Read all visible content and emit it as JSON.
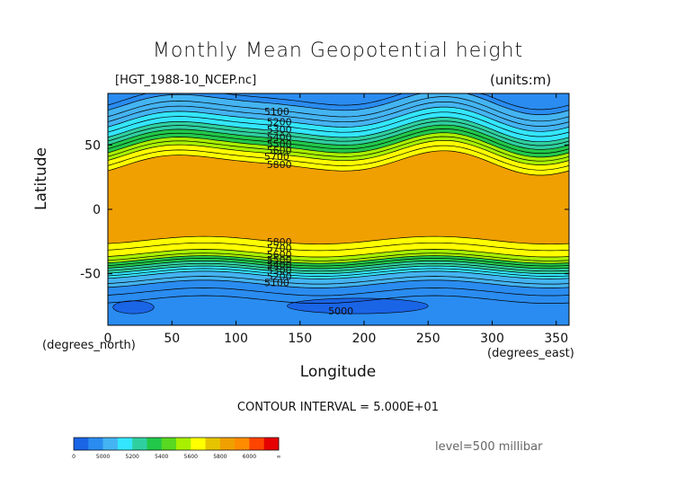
{
  "chart_data": {
    "type": "heatmap",
    "title": "Monthly Mean Geopotential height",
    "file_label": "[HGT_1988-10_NCEP.nc]",
    "units_label": "(units:m)",
    "xlabel": "Longitude",
    "ylabel": "Latitude",
    "x_unit_label": "(degrees_east)",
    "y_unit_label": "(degrees_north)",
    "xlim": [
      0,
      360
    ],
    "ylim": [
      -90,
      90
    ],
    "x_ticks": [
      0,
      50,
      100,
      150,
      200,
      250,
      300,
      350
    ],
    "y_ticks": [
      -50,
      0,
      50
    ],
    "contour_interval_text": "CONTOUR INTERVAL = 5.000E+01",
    "level_text": "level=500 millibar",
    "contour_interval": 50,
    "contour_labels": [
      {
        "text": "5100",
        "lon": 122,
        "lat": 76
      },
      {
        "text": "5200",
        "lon": 124,
        "lat": 68
      },
      {
        "text": "5300",
        "lon": 124,
        "lat": 62
      },
      {
        "text": "5400",
        "lon": 124,
        "lat": 56
      },
      {
        "text": "5500",
        "lon": 124,
        "lat": 51
      },
      {
        "text": "5600",
        "lon": 124,
        "lat": 46
      },
      {
        "text": "5700",
        "lon": 122,
        "lat": 41
      },
      {
        "text": "5800",
        "lon": 124,
        "lat": 35
      },
      {
        "text": "5800",
        "lon": 124,
        "lat": -25
      },
      {
        "text": "5700",
        "lon": 124,
        "lat": -30
      },
      {
        "text": "5600",
        "lon": 124,
        "lat": -35
      },
      {
        "text": "5500",
        "lon": 124,
        "lat": -39
      },
      {
        "text": "5400",
        "lon": 124,
        "lat": -43
      },
      {
        "text": "5300",
        "lon": 124,
        "lat": -47
      },
      {
        "text": "5200",
        "lon": 124,
        "lat": -52
      },
      {
        "text": "5100",
        "lon": 122,
        "lat": -57
      },
      {
        "text": "5000",
        "lon": 172,
        "lat": -79
      }
    ],
    "colorbar": {
      "labels": [
        "0",
        "5000",
        "5200",
        "5400",
        "5600",
        "5800",
        "6000",
        "∞"
      ],
      "colors": [
        "#1a64e6",
        "#2a8cf0",
        "#44b4f2",
        "#33e6ff",
        "#2fd0a0",
        "#22c84a",
        "#58d820",
        "#a8f000",
        "#ffff00",
        "#e6c400",
        "#f0a000",
        "#ff8c00",
        "#ff4400",
        "#e60000"
      ]
    },
    "bands": [
      {
        "from": 90,
        "to": 83,
        "color": "#2a8cf0"
      },
      {
        "from": 83,
        "to": 70,
        "color": "#44b4f2"
      },
      {
        "from": 70,
        "to": 62,
        "color": "#33e6ff"
      },
      {
        "from": 62,
        "to": 56,
        "color": "#2fd0a0"
      },
      {
        "from": 56,
        "to": 50,
        "color": "#22c84a"
      },
      {
        "from": 50,
        "to": 44,
        "color": "#a8f000"
      },
      {
        "from": 44,
        "to": 36,
        "color": "#ffff00"
      },
      {
        "from": 36,
        "to": -24,
        "color": "#f0a000"
      },
      {
        "from": -24,
        "to": -34,
        "color": "#ffff00"
      },
      {
        "from": -34,
        "to": -39,
        "color": "#a8f000"
      },
      {
        "from": -39,
        "to": -43,
        "color": "#22c84a"
      },
      {
        "from": -43,
        "to": -47,
        "color": "#2fd0a0"
      },
      {
        "from": -47,
        "to": -51,
        "color": "#33e6ff"
      },
      {
        "from": -51,
        "to": -58,
        "color": "#44b4f2"
      },
      {
        "from": -58,
        "to": -90,
        "color": "#2a8cf0"
      }
    ],
    "low_regions": [
      {
        "lon": 20,
        "lat": -76,
        "rx": 16,
        "ry": 5,
        "color": "#1a64e6"
      },
      {
        "lon": 195,
        "lat": -75,
        "rx": 55,
        "ry": 6,
        "color": "#1a64e6"
      }
    ],
    "contour_lines": [
      87,
      83,
      78,
      74,
      70,
      66,
      62,
      59,
      56,
      53,
      50,
      47,
      44,
      40,
      36,
      -24,
      -29,
      -34,
      -37,
      -39,
      -41,
      -43,
      -45,
      -47,
      -49,
      -51,
      -55,
      -58,
      -64,
      -70
    ]
  }
}
